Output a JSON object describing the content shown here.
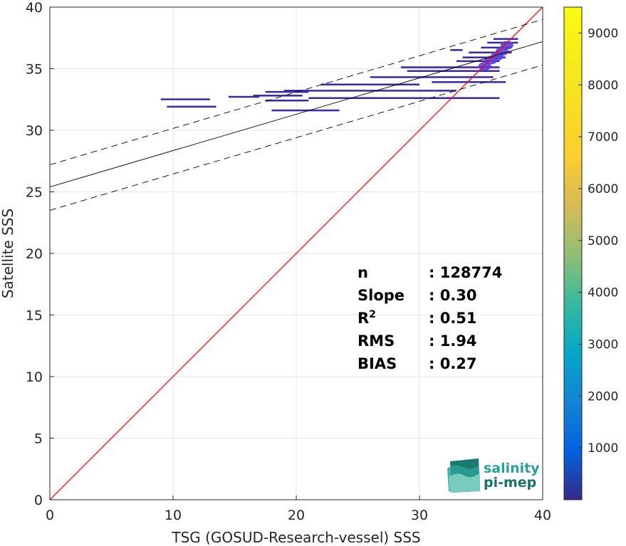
{
  "chart_data": {
    "type": "scatter",
    "subtype": "2d-density-histogram",
    "xlabel": "TSG (GOSUD-Research-vessel) SSS",
    "ylabel": "Satellite SSS",
    "xlim": [
      0,
      40
    ],
    "ylim": [
      0,
      40
    ],
    "xticks": [
      0,
      10,
      20,
      30,
      40
    ],
    "yticks": [
      0,
      5,
      10,
      15,
      20,
      25,
      30,
      35,
      40
    ],
    "grid": true,
    "colorbar": {
      "colormap": "parula",
      "range": [
        0,
        9500
      ],
      "ticks": [
        1000,
        2000,
        3000,
        4000,
        5000,
        6000,
        7000,
        8000,
        9000
      ]
    },
    "lines": [
      {
        "role": "one-to-one",
        "color": "#ff0000",
        "style": "solid",
        "intercept": 0,
        "slope": 1
      },
      {
        "role": "regression",
        "color": "#000000",
        "style": "solid",
        "intercept": 25.4,
        "slope": 0.295
      },
      {
        "role": "upper-bound",
        "color": "#000000",
        "style": "dashed",
        "intercept": 27.2,
        "slope": 0.295
      },
      {
        "role": "lower-bound",
        "color": "#000000",
        "style": "dashed",
        "intercept": 23.5,
        "slope": 0.295
      }
    ],
    "density_segments": [
      {
        "x0": 9.0,
        "x1": 13.0,
        "y": 32.5
      },
      {
        "x0": 9.5,
        "x1": 13.5,
        "y": 31.9
      },
      {
        "x0": 14.5,
        "x1": 17.0,
        "y": 32.7
      },
      {
        "x0": 16.5,
        "x1": 20.5,
        "y": 32.8
      },
      {
        "x0": 17.5,
        "x1": 21.0,
        "y": 33.1
      },
      {
        "x0": 19.0,
        "x1": 33.0,
        "y": 33.2
      },
      {
        "x0": 17.5,
        "x1": 21.0,
        "y": 32.4
      },
      {
        "x0": 21.0,
        "x1": 36.5,
        "y": 32.6
      },
      {
        "x0": 18.0,
        "x1": 23.5,
        "y": 31.6
      },
      {
        "x0": 22.0,
        "x1": 30.0,
        "y": 33.7
      },
      {
        "x0": 26.0,
        "x1": 36.0,
        "y": 34.3
      },
      {
        "x0": 28.5,
        "x1": 36.5,
        "y": 35.1
      },
      {
        "x0": 29.0,
        "x1": 36.5,
        "y": 34.8
      },
      {
        "x0": 31.0,
        "x1": 37.0,
        "y": 33.9
      },
      {
        "x0": 33.0,
        "x1": 36.5,
        "y": 35.6
      },
      {
        "x0": 33.5,
        "x1": 37.0,
        "y": 35.9
      },
      {
        "x0": 34.0,
        "x1": 37.5,
        "y": 36.3
      },
      {
        "x0": 35.0,
        "x1": 37.5,
        "y": 36.7
      },
      {
        "x0": 35.5,
        "x1": 38.0,
        "y": 37.1
      },
      {
        "x0": 36.0,
        "x1": 38.0,
        "y": 37.4
      },
      {
        "x0": 32.5,
        "x1": 33.5,
        "y": 36.5
      }
    ],
    "density_hotspots": [
      {
        "x": 35.3,
        "y": 35.2,
        "level": 1400
      },
      {
        "x": 35.8,
        "y": 35.7,
        "level": 1600
      },
      {
        "x": 36.3,
        "y": 36.0,
        "level": 1300
      },
      {
        "x": 36.7,
        "y": 36.4,
        "level": 1200
      },
      {
        "x": 37.1,
        "y": 36.9,
        "level": 1100
      }
    ]
  },
  "stats": [
    {
      "label": "n",
      "value": ": 128774"
    },
    {
      "label": "Slope",
      "value": ": 0.30"
    },
    {
      "label": "R",
      "sup": "2",
      "value": ": 0.51"
    },
    {
      "label": "RMS",
      "value": ": 1.94"
    },
    {
      "label": "BIAS",
      "value": ": 0.27"
    }
  ],
  "logo": {
    "line1": "salinity",
    "line2": "pi-mep",
    "color1": "#2aa198",
    "color2": "#1b6f6a"
  },
  "colors": {
    "one_to_one": "#ff0000",
    "fit": "#000000",
    "density_low": "#3e26a8",
    "density_mid": "#5b3fd6"
  }
}
